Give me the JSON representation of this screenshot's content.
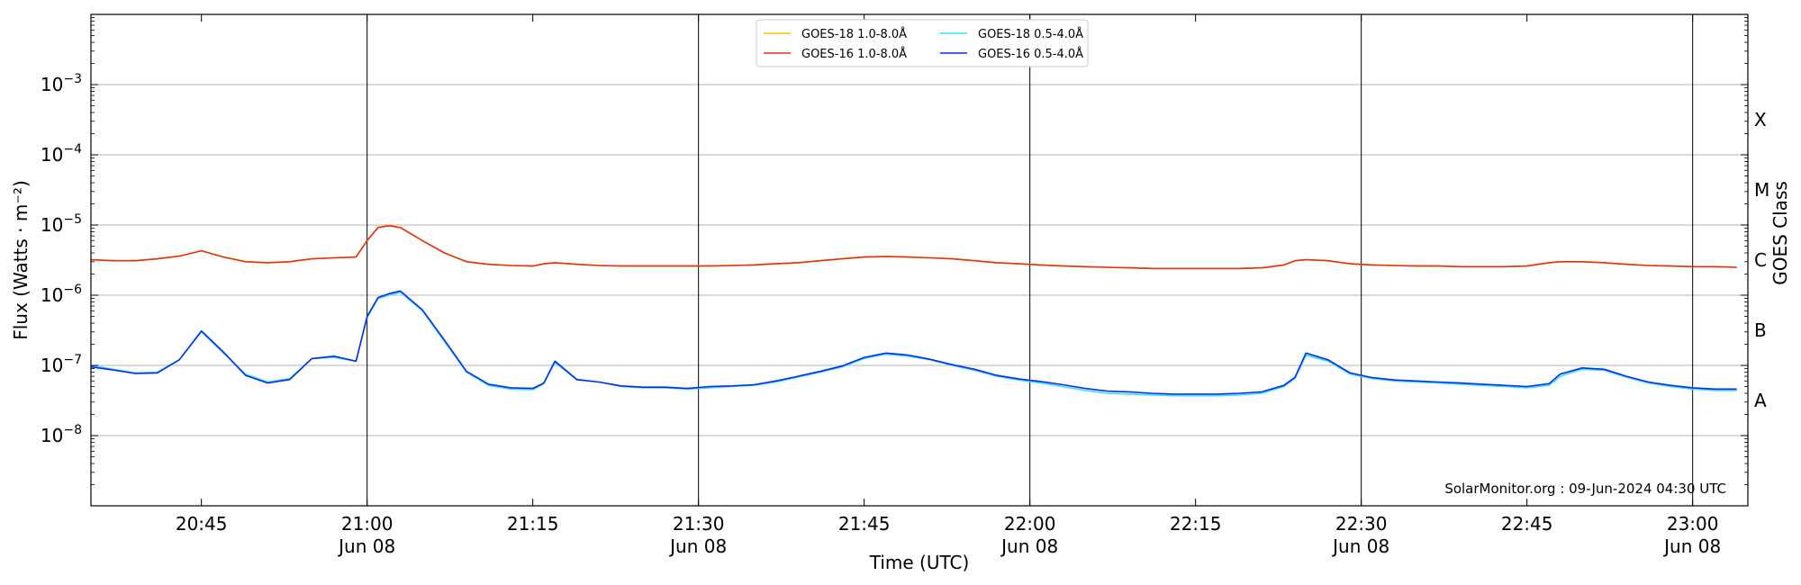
{
  "chart_data": {
    "type": "line",
    "title": "",
    "xlabel": "Time (UTC)",
    "ylabel": "Flux (Watts · m⁻²)",
    "ylabel_right": "GOES Class",
    "y_scale": "log",
    "ylim": [
      1e-09,
      0.01
    ],
    "xlim": [
      "20:35",
      "23:05"
    ],
    "x_ticks": [
      {
        "t": "20:45",
        "label": "20:45",
        "sub": ""
      },
      {
        "t": "21:00",
        "label": "21:00",
        "sub": "Jun 08"
      },
      {
        "t": "21:15",
        "label": "21:15",
        "sub": ""
      },
      {
        "t": "21:30",
        "label": "21:30",
        "sub": "Jun 08"
      },
      {
        "t": "21:45",
        "label": "21:45",
        "sub": ""
      },
      {
        "t": "22:00",
        "label": "22:00",
        "sub": "Jun 08"
      },
      {
        "t": "22:15",
        "label": "22:15",
        "sub": ""
      },
      {
        "t": "22:30",
        "label": "22:30",
        "sub": "Jun 08"
      },
      {
        "t": "22:45",
        "label": "22:45",
        "sub": ""
      },
      {
        "t": "23:00",
        "label": "23:00",
        "sub": "Jun 08"
      }
    ],
    "vertical_lines": [
      "21:00",
      "21:30",
      "22:00",
      "22:30",
      "23:00"
    ],
    "y_ticks": [
      {
        "value": 1e-08,
        "base": "10",
        "exp": "−8"
      },
      {
        "value": 1e-07,
        "base": "10",
        "exp": "−7"
      },
      {
        "value": 1e-06,
        "base": "10",
        "exp": "−6"
      },
      {
        "value": 1e-05,
        "base": "10",
        "exp": "−5"
      },
      {
        "value": 0.0001,
        "base": "10",
        "exp": "−4"
      },
      {
        "value": 0.001,
        "base": "10",
        "exp": "−3"
      }
    ],
    "goes_classes": [
      {
        "label": "A",
        "value": 3.16e-08
      },
      {
        "label": "B",
        "value": 3.16e-07
      },
      {
        "label": "C",
        "value": 3.16e-06
      },
      {
        "label": "M",
        "value": 3.16e-05
      },
      {
        "label": "X",
        "value": 0.000316
      }
    ],
    "grid": true,
    "legend_position": "top-center",
    "x": [
      "20:35",
      "20:37",
      "20:39",
      "20:41",
      "20:43",
      "20:45",
      "20:47",
      "20:49",
      "20:51",
      "20:53",
      "20:55",
      "20:57",
      "20:59",
      "21:00",
      "21:01",
      "21:02",
      "21:03",
      "21:05",
      "21:07",
      "21:09",
      "21:11",
      "21:13",
      "21:15",
      "21:16",
      "21:17",
      "21:19",
      "21:21",
      "21:23",
      "21:25",
      "21:27",
      "21:29",
      "21:31",
      "21:33",
      "21:35",
      "21:37",
      "21:39",
      "21:41",
      "21:43",
      "21:45",
      "21:47",
      "21:49",
      "21:51",
      "21:53",
      "21:55",
      "21:57",
      "21:59",
      "22:01",
      "22:03",
      "22:05",
      "22:07",
      "22:09",
      "22:11",
      "22:13",
      "22:15",
      "22:17",
      "22:19",
      "22:21",
      "22:23",
      "22:24",
      "22:25",
      "22:27",
      "22:29",
      "22:31",
      "22:33",
      "22:35",
      "22:37",
      "22:39",
      "22:41",
      "22:43",
      "22:45",
      "22:47",
      "22:48",
      "22:50",
      "22:52",
      "22:54",
      "22:56",
      "22:58",
      "23:00",
      "23:02",
      "23:04"
    ],
    "series": [
      {
        "name": "GOES-18 1.0-8.0Å",
        "color": "#f0c800",
        "values": [
          3.2e-06,
          3.1e-06,
          3.1e-06,
          3.3e-06,
          3.6e-06,
          4.3e-06,
          3.5e-06,
          3e-06,
          2.9e-06,
          3e-06,
          3.3e-06,
          3.4e-06,
          3.5e-06,
          6e-06,
          9.2e-06,
          9.8e-06,
          9.2e-06,
          6e-06,
          4e-06,
          3e-06,
          2.75e-06,
          2.65e-06,
          2.6e-06,
          2.8e-06,
          2.9e-06,
          2.75e-06,
          2.65e-06,
          2.6e-06,
          2.6e-06,
          2.6e-06,
          2.6e-06,
          2.6e-06,
          2.65e-06,
          2.7e-06,
          2.8e-06,
          2.9e-06,
          3.1e-06,
          3.3e-06,
          3.5e-06,
          3.55e-06,
          3.5e-06,
          3.4e-06,
          3.3e-06,
          3.1e-06,
          2.9e-06,
          2.8e-06,
          2.7e-06,
          2.6e-06,
          2.55e-06,
          2.5e-06,
          2.45e-06,
          2.4e-06,
          2.4e-06,
          2.4e-06,
          2.4e-06,
          2.4e-06,
          2.45e-06,
          2.7e-06,
          3.1e-06,
          3.2e-06,
          3.1e-06,
          2.8e-06,
          2.7e-06,
          2.65e-06,
          2.6e-06,
          2.6e-06,
          2.55e-06,
          2.55e-06,
          2.55e-06,
          2.6e-06,
          2.9e-06,
          3e-06,
          3e-06,
          2.9e-06,
          2.75e-06,
          2.65e-06,
          2.6e-06,
          2.55e-06,
          2.55e-06,
          2.5e-06
        ]
      },
      {
        "name": "GOES-16 1.0-8.0Å",
        "color": "#e83010",
        "values": [
          3.2e-06,
          3.1e-06,
          3.1e-06,
          3.3e-06,
          3.6e-06,
          4.3e-06,
          3.5e-06,
          3e-06,
          2.9e-06,
          3e-06,
          3.3e-06,
          3.4e-06,
          3.5e-06,
          6e-06,
          9.2e-06,
          9.8e-06,
          9.2e-06,
          6e-06,
          4e-06,
          3e-06,
          2.75e-06,
          2.65e-06,
          2.6e-06,
          2.8e-06,
          2.9e-06,
          2.75e-06,
          2.65e-06,
          2.6e-06,
          2.6e-06,
          2.6e-06,
          2.6e-06,
          2.6e-06,
          2.65e-06,
          2.7e-06,
          2.8e-06,
          2.9e-06,
          3.1e-06,
          3.3e-06,
          3.5e-06,
          3.55e-06,
          3.5e-06,
          3.4e-06,
          3.3e-06,
          3.1e-06,
          2.9e-06,
          2.8e-06,
          2.7e-06,
          2.6e-06,
          2.55e-06,
          2.5e-06,
          2.45e-06,
          2.4e-06,
          2.4e-06,
          2.4e-06,
          2.4e-06,
          2.4e-06,
          2.45e-06,
          2.7e-06,
          3.1e-06,
          3.2e-06,
          3.1e-06,
          2.8e-06,
          2.7e-06,
          2.65e-06,
          2.6e-06,
          2.6e-06,
          2.55e-06,
          2.55e-06,
          2.55e-06,
          2.6e-06,
          2.9e-06,
          3e-06,
          3e-06,
          2.9e-06,
          2.75e-06,
          2.65e-06,
          2.6e-06,
          2.55e-06,
          2.55e-06,
          2.5e-06
        ]
      },
      {
        "name": "GOES-18 0.5-4.0Å",
        "color": "#30e0ff",
        "values": [
          1e-07,
          8.8e-08,
          7.8e-08,
          8e-08,
          1.2e-07,
          3e-07,
          1.5e-07,
          7.5e-08,
          5.8e-08,
          6.5e-08,
          1.25e-07,
          1.3e-07,
          1.15e-07,
          4.8e-07,
          9e-07,
          1e-06,
          1.1e-06,
          6e-07,
          2.2e-07,
          8e-08,
          5.2e-08,
          4.6e-08,
          4.5e-08,
          5.5e-08,
          1.1e-07,
          6.2e-08,
          5.8e-08,
          5e-08,
          4.8e-08,
          4.8e-08,
          4.6e-08,
          4.8e-08,
          5e-08,
          5.2e-08,
          5.8e-08,
          6.8e-08,
          8e-08,
          9.5e-08,
          1.25e-07,
          1.45e-07,
          1.35e-07,
          1.2e-07,
          1e-07,
          8.5e-08,
          7e-08,
          6.2e-08,
          5.6e-08,
          5e-08,
          4.4e-08,
          4e-08,
          3.9e-08,
          3.8e-08,
          3.7e-08,
          3.7e-08,
          3.7e-08,
          3.8e-08,
          4e-08,
          5e-08,
          6.5e-08,
          1.4e-07,
          1.15e-07,
          7.5e-08,
          6.5e-08,
          6e-08,
          5.8e-08,
          5.6e-08,
          5.4e-08,
          5.2e-08,
          5e-08,
          4.8e-08,
          5.2e-08,
          7e-08,
          8.8e-08,
          8.5e-08,
          6.8e-08,
          5.6e-08,
          5e-08,
          4.6e-08,
          4.4e-08,
          4.4e-08
        ]
      },
      {
        "name": "GOES-16 0.5-4.0Å",
        "color": "#0a2ee6",
        "values": [
          9.5e-08,
          8.6e-08,
          7.7e-08,
          7.8e-08,
          1.2e-07,
          3.1e-07,
          1.55e-07,
          7.2e-08,
          5.6e-08,
          6.3e-08,
          1.25e-07,
          1.35e-07,
          1.15e-07,
          5e-07,
          9.3e-07,
          1.05e-06,
          1.15e-06,
          6.2e-07,
          2.3e-07,
          8.2e-08,
          5.4e-08,
          4.8e-08,
          4.7e-08,
          5.6e-08,
          1.15e-07,
          6.3e-08,
          5.8e-08,
          5.1e-08,
          4.9e-08,
          4.9e-08,
          4.7e-08,
          5e-08,
          5.1e-08,
          5.3e-08,
          6e-08,
          7e-08,
          8.2e-08,
          9.8e-08,
          1.3e-07,
          1.5e-07,
          1.4e-07,
          1.22e-07,
          1.02e-07,
          8.8e-08,
          7.2e-08,
          6.4e-08,
          5.9e-08,
          5.3e-08,
          4.7e-08,
          4.3e-08,
          4.2e-08,
          4e-08,
          3.9e-08,
          3.9e-08,
          3.9e-08,
          4e-08,
          4.2e-08,
          5.2e-08,
          6.8e-08,
          1.5e-07,
          1.2e-07,
          7.8e-08,
          6.7e-08,
          6.2e-08,
          6e-08,
          5.8e-08,
          5.6e-08,
          5.4e-08,
          5.2e-08,
          5e-08,
          5.5e-08,
          7.5e-08,
          9.2e-08,
          8.8e-08,
          7e-08,
          5.8e-08,
          5.2e-08,
          4.8e-08,
          4.6e-08,
          4.6e-08
        ]
      }
    ],
    "annotation": "SolarMonitor.org : 09-Jun-2024 04:30 UTC"
  }
}
